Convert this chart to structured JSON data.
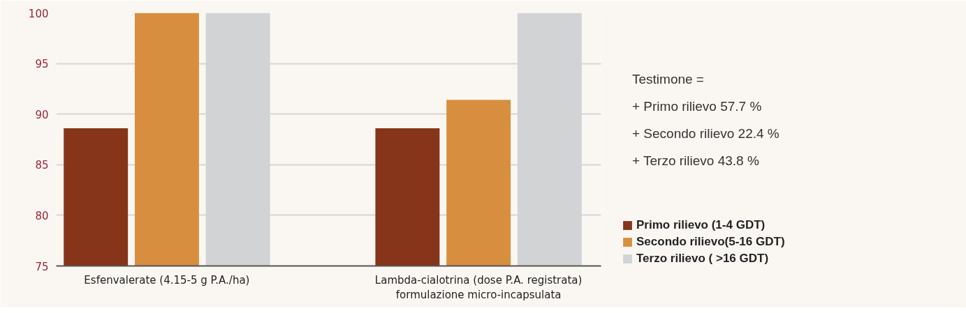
{
  "chart_data": {
    "type": "bar",
    "categories": [
      "Esfenvalerate (4.15-5 g P.A./ha)",
      "Lambda-cialotrina (dose P.A. registrata)\nformulazione micro-incapsulata"
    ],
    "series": [
      {
        "name": "Primo rilievo (1-4 GDT)",
        "color": "#86351a",
        "values": [
          88.6,
          88.6
        ]
      },
      {
        "name": "Secondo rilievo(5-16 GDT)",
        "color": "#d78f3f",
        "values": [
          100,
          91.4
        ]
      },
      {
        "name": "Terzo rilievo ( >16 GDT)",
        "color": "#d1d3d5",
        "values": [
          100,
          100
        ]
      }
    ],
    "ylim": [
      75,
      100
    ],
    "yticks": [
      75,
      80,
      85,
      90,
      95,
      100
    ],
    "grid": "y",
    "legend": "right",
    "annotations": [
      "Testimone =",
      "+ Primo rilievo 57.7 %",
      "+ Secondo rilievo 22.4 %",
      "+ Terzo rilievo 43.8 %"
    ]
  }
}
